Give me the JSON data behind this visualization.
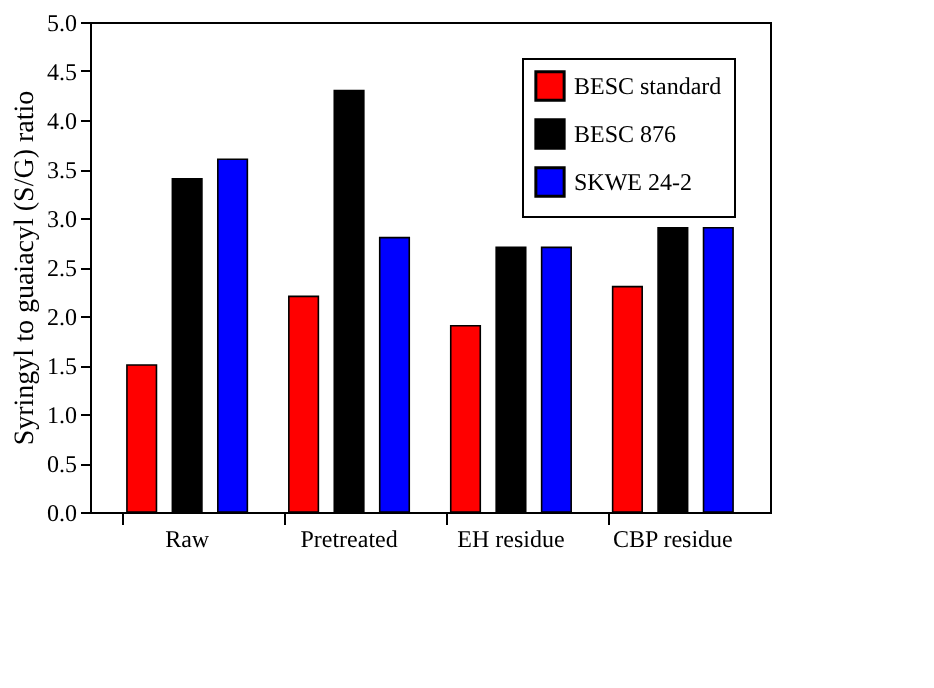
{
  "chart_data": {
    "type": "bar",
    "ylabel": "Syringyl to guaiacyl (S/G) ratio",
    "categories": [
      "Raw",
      "Pretreated",
      "EH residue",
      "CBP residue"
    ],
    "series": [
      {
        "name": "BESC standard",
        "color": "#ff0000",
        "values": [
          1.5,
          2.2,
          1.9,
          2.3
        ]
      },
      {
        "name": "BESC 876",
        "color": "#000000",
        "values": [
          3.4,
          4.3,
          2.7,
          2.9
        ]
      },
      {
        "name": "SKWE 24-2",
        "color": "#0000ff",
        "values": [
          3.6,
          2.8,
          2.7,
          2.9
        ]
      }
    ],
    "ylim": [
      0,
      5
    ],
    "yticks": [
      {
        "value": 0,
        "label": "0.0"
      },
      0.5,
      {
        "value": 1,
        "label": "1.0"
      },
      1.5,
      {
        "value": 2,
        "label": "2.0"
      },
      2.5,
      {
        "value": 3,
        "label": "3.0"
      },
      3.5,
      {
        "value": 4,
        "label": "4.0"
      },
      4.5,
      {
        "value": 5,
        "label": "5.0"
      }
    ],
    "grid": false,
    "legend": "top right"
  }
}
